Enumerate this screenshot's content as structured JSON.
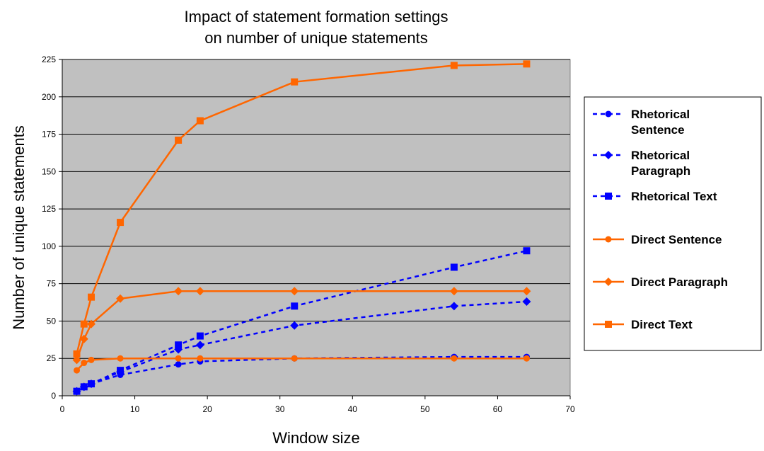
{
  "chart_data": {
    "type": "line",
    "title": [
      "Impact of statement formation settings",
      "on number of unique statements"
    ],
    "xlabel": "Window size",
    "ylabel": "Number of unique statements",
    "xlim": [
      0,
      70
    ],
    "ylim": [
      0,
      225
    ],
    "xticks": [
      "0",
      "10",
      "20",
      "30",
      "40",
      "50",
      "60",
      "70"
    ],
    "yticks": [
      "0",
      "25",
      "50",
      "75",
      "100",
      "125",
      "150",
      "175",
      "200",
      "225"
    ],
    "grid": "horizontal",
    "plot_background": "#c0c0c0",
    "legend_position": "right",
    "series": [
      {
        "name": [
          "Rhetorical",
          "Sentence"
        ],
        "color": "#0000ff",
        "dashed": true,
        "marker": "circle",
        "x": [
          2,
          3,
          4,
          8,
          16,
          19,
          32,
          54,
          64
        ],
        "y": [
          3,
          6,
          8,
          14,
          21,
          23,
          25,
          26,
          26
        ]
      },
      {
        "name": [
          "Rhetorical",
          "Paragraph"
        ],
        "color": "#0000ff",
        "dashed": true,
        "marker": "diamond",
        "x": [
          2,
          3,
          4,
          8,
          16,
          19,
          32,
          54,
          64
        ],
        "y": [
          3,
          6,
          8,
          16,
          31,
          34,
          47,
          60,
          63
        ]
      },
      {
        "name": [
          "Rhetorical Text"
        ],
        "color": "#0000ff",
        "dashed": true,
        "marker": "square",
        "x": [
          2,
          3,
          4,
          8,
          16,
          19,
          32,
          54,
          64
        ],
        "y": [
          3,
          6,
          8,
          17,
          34,
          40,
          60,
          86,
          97
        ]
      },
      {
        "name": [
          "Direct Sentence"
        ],
        "color": "#ff6600",
        "dashed": false,
        "marker": "circle",
        "x": [
          2,
          3,
          4,
          8,
          16,
          19,
          32,
          54,
          64
        ],
        "y": [
          17,
          22,
          24,
          25,
          25,
          25,
          25,
          25,
          25
        ]
      },
      {
        "name": [
          "Direct Paragraph"
        ],
        "color": "#ff6600",
        "dashed": false,
        "marker": "diamond",
        "x": [
          2,
          3,
          4,
          8,
          16,
          19,
          32,
          54,
          64
        ],
        "y": [
          24,
          38,
          48,
          65,
          70,
          70,
          70,
          70,
          70
        ]
      },
      {
        "name": [
          "Direct Text"
        ],
        "color": "#ff6600",
        "dashed": false,
        "marker": "square",
        "x": [
          2,
          3,
          4,
          8,
          16,
          19,
          32,
          54,
          64
        ],
        "y": [
          28,
          48,
          66,
          116,
          171,
          184,
          210,
          221,
          222
        ]
      }
    ]
  }
}
